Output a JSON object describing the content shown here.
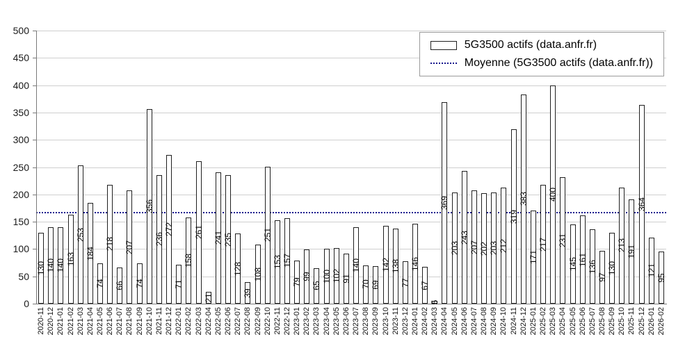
{
  "chart_data": {
    "type": "bar",
    "title": "",
    "xlabel": "",
    "ylabel": "",
    "series_name": "5G3500 actifs (data.anfr.fr)",
    "categories": [
      "2020-11",
      "2020-12",
      "2021-01",
      "2021-02",
      "2021-03",
      "2021-04",
      "2021-05",
      "2021-06",
      "2021-07",
      "2021-08",
      "2021-09",
      "2021-10",
      "2021-11",
      "2021-12",
      "2022-01",
      "2022-02",
      "2022-03",
      "2022-04",
      "2022-05",
      "2022-06",
      "2022-07",
      "2022-08",
      "2022-09",
      "2022-10",
      "2022-11",
      "2022-12",
      "2023-01",
      "2023-02",
      "2023-03",
      "2023-04",
      "2023-05",
      "2023-06",
      "2023-07",
      "2023-08",
      "2023-09",
      "2023-10",
      "2023-11",
      "2023-12",
      "2024-01",
      "2024-02",
      "2024-03",
      "2024-04",
      "2024-05",
      "2024-06",
      "2024-07",
      "2024-08",
      "2024-09",
      "2024-10",
      "2024-11",
      "2024-12",
      "2025-01",
      "2025-02",
      "2025-03",
      "2025-04",
      "2025-05",
      "2025-06",
      "2025-07",
      "2025-08",
      "2025-09",
      "2025-10",
      "2025-11",
      "2025-12",
      "2026-01",
      "2026-02"
    ],
    "values": [
      130,
      140,
      140,
      163,
      253,
      184,
      74,
      218,
      66,
      207,
      74,
      356,
      236,
      272,
      71,
      158,
      261,
      21,
      241,
      235,
      128,
      39,
      108,
      251,
      153,
      157,
      79,
      99,
      65,
      100,
      102,
      91,
      140,
      70,
      69,
      142,
      138,
      77,
      146,
      67,
      5,
      369,
      203,
      243,
      207,
      202,
      203,
      212,
      319,
      383,
      171,
      217,
      400,
      231,
      145,
      161,
      136,
      97,
      130,
      213,
      191,
      364,
      121,
      95
    ],
    "ylim": [
      0,
      500
    ],
    "yticks": [
      0,
      50,
      100,
      150,
      200,
      250,
      300,
      350,
      400,
      450,
      500
    ],
    "grid": true,
    "legend_position": "top-right",
    "x_label_rotation_deg": 90,
    "value_label_rotation_deg": 90,
    "mean_line": {
      "label": "Moyenne (5G3500 actifs (data.anfr.fr))",
      "value": 167.8,
      "color": "#14148c",
      "style": "dotted"
    },
    "bar_fill": "#ffffff",
    "bar_border": "#1f1f1f",
    "gridline_color": "#cfcfcf"
  },
  "legend": {
    "series_label": "5G3500 actifs (data.anfr.fr)",
    "mean_label": "Moyenne (5G3500 actifs (data.anfr.fr))"
  }
}
